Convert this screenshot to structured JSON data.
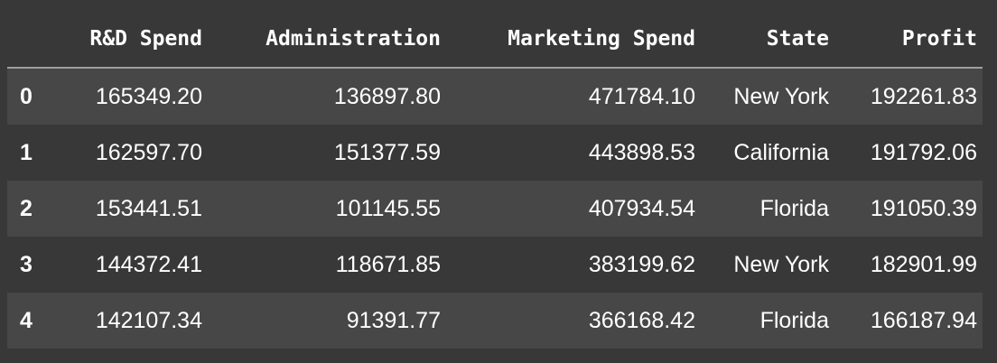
{
  "table": {
    "index_header": "",
    "columns": [
      "R&D Spend",
      "Administration",
      "Marketing Spend",
      "State",
      "Profit"
    ],
    "rows": [
      {
        "index": "0",
        "cells": [
          "165349.20",
          "136897.80",
          "471784.10",
          "New York",
          "192261.83"
        ]
      },
      {
        "index": "1",
        "cells": [
          "162597.70",
          "151377.59",
          "443898.53",
          "California",
          "191792.06"
        ]
      },
      {
        "index": "2",
        "cells": [
          "153441.51",
          "101145.55",
          "407934.54",
          "Florida",
          "191050.39"
        ]
      },
      {
        "index": "3",
        "cells": [
          "144372.41",
          "118671.85",
          "383199.62",
          "New York",
          "182901.99"
        ]
      },
      {
        "index": "4",
        "cells": [
          "142107.34",
          "91391.77",
          "366168.42",
          "Florida",
          "166187.94"
        ]
      }
    ]
  },
  "colors": {
    "background": "#383838",
    "row_stripe": "#474747",
    "text": "#ffffff",
    "header_rule": "#9e9e9e"
  }
}
